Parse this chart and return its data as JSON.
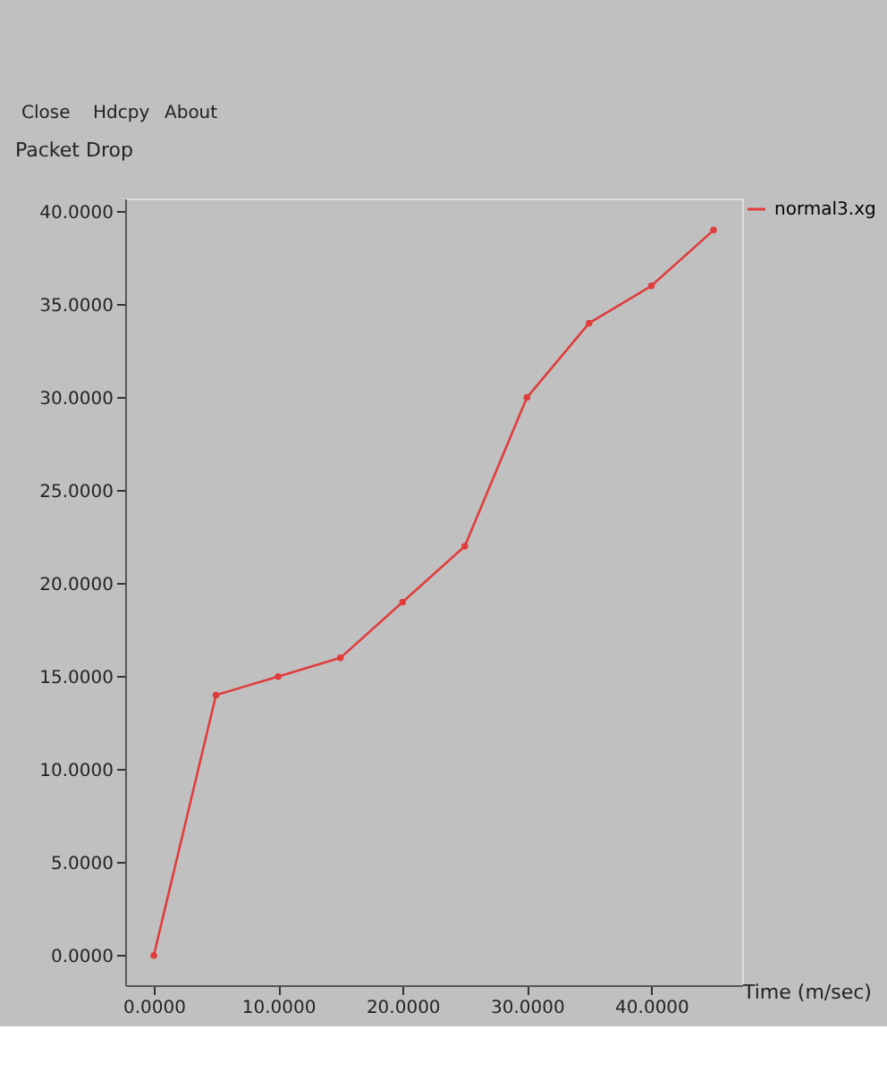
{
  "chart_data": {
    "type": "line",
    "xlabel": "Time (m/sec)",
    "ylabel": "Packet Drop",
    "annotations": [
      "Close",
      "Hdcpy",
      "About"
    ],
    "x": [
      0,
      5,
      10,
      15,
      20,
      25,
      30,
      35,
      40,
      45
    ],
    "series": [
      {
        "name": "normal3.xg",
        "color": "#e03c3c",
        "values": [
          0,
          14,
          15,
          16,
          19,
          22,
          30,
          34,
          36,
          39
        ]
      }
    ],
    "xlim": [
      -2.3,
      47.3
    ],
    "ylim": [
      -1.6,
      40.7
    ],
    "xticks": [
      {
        "value": 0,
        "label": "0.0000"
      },
      {
        "value": 10,
        "label": "10.0000"
      },
      {
        "value": 20,
        "label": "20.0000"
      },
      {
        "value": 30,
        "label": "30.0000"
      },
      {
        "value": 40,
        "label": "40.0000"
      }
    ],
    "yticks": [
      {
        "value": 0,
        "label": "0.0000"
      },
      {
        "value": 5,
        "label": "5.0000"
      },
      {
        "value": 10,
        "label": "10.0000"
      },
      {
        "value": 15,
        "label": "15.0000"
      },
      {
        "value": 20,
        "label": "20.0000"
      },
      {
        "value": 25,
        "label": "25.0000"
      },
      {
        "value": 30,
        "label": "30.0000"
      },
      {
        "value": 35,
        "label": "35.0000"
      },
      {
        "value": 40,
        "label": "40.0000"
      }
    ],
    "grid": false,
    "legend": "top right",
    "marker": "circle",
    "line_style": "solid"
  }
}
